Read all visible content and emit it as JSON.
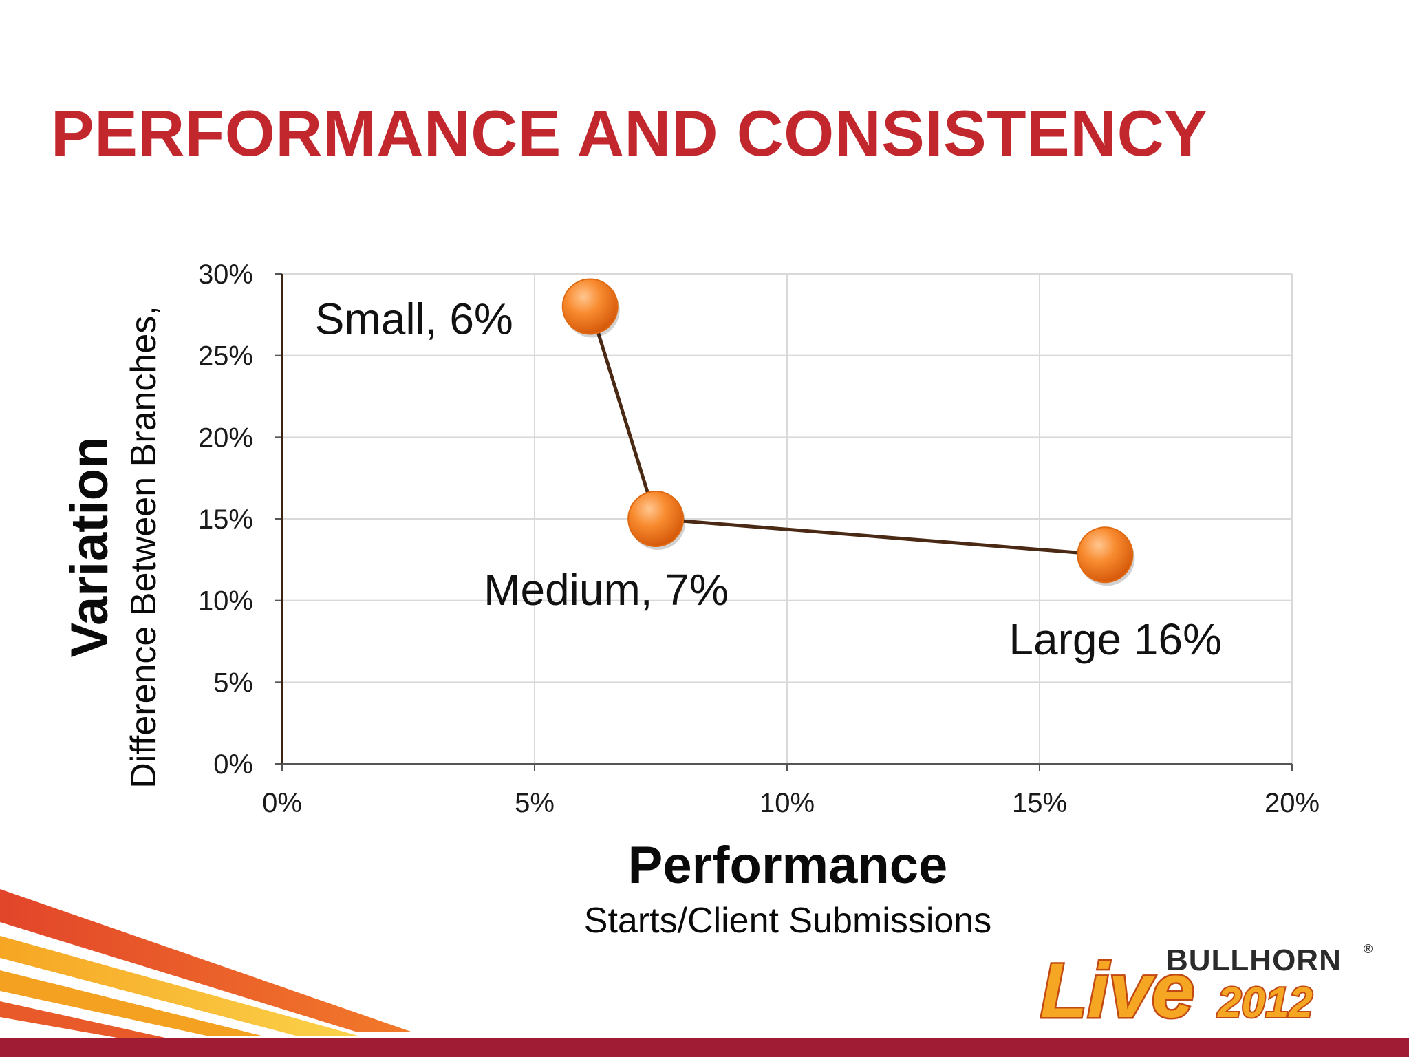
{
  "slide": {
    "title": "PERFORMANCE AND CONSISTENCY"
  },
  "colors": {
    "title": "#c1272d",
    "marker": "#f47a20",
    "line": "#4a2a14",
    "grid": "#d9d9d9",
    "footer_bar": "#a01c35"
  },
  "chart_data": {
    "type": "scatter",
    "xlabel": "Performance",
    "xlabel_sub": "Starts/Client Submissions",
    "ylabel": "Variation",
    "ylabel_sub": "Difference Between Branches,",
    "xlim": [
      0,
      0.2
    ],
    "ylim": [
      0,
      0.3
    ],
    "x_ticks": [
      "0%",
      "5%",
      "10%",
      "15%",
      "20%"
    ],
    "y_ticks": [
      "0%",
      "5%",
      "10%",
      "15%",
      "20%",
      "25%",
      "30%"
    ],
    "grid": true,
    "connected": true,
    "points": [
      {
        "label": "Small, 6%",
        "x": 0.061,
        "y": 0.28
      },
      {
        "label": "Medium, 7%",
        "x": 0.074,
        "y": 0.15
      },
      {
        "label": "Large 16%",
        "x": 0.163,
        "y": 0.128
      }
    ]
  },
  "logo": {
    "brand": "BULLHORN",
    "registered": "®",
    "event": "Live",
    "year": "2012"
  }
}
